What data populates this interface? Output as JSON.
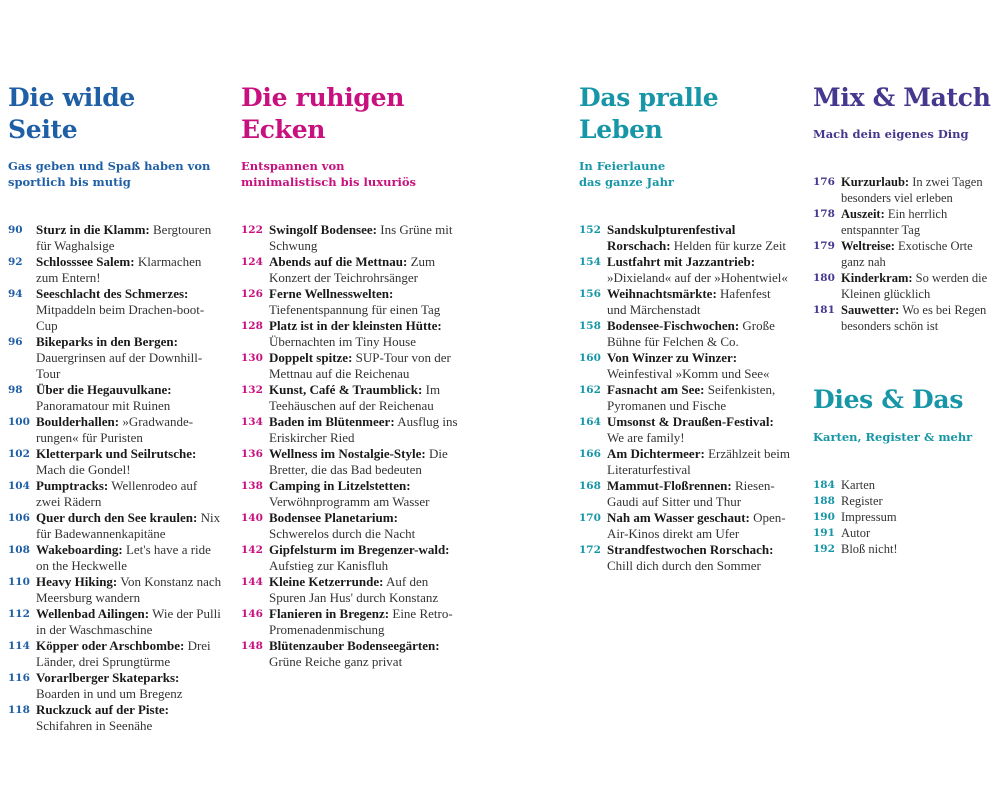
{
  "colors": {
    "wild": "#1f5fa6",
    "quiet": "#c8107e",
    "life": "#1696a6",
    "mix": "#45388f",
    "dies": "#1696a6"
  },
  "sections": {
    "wild": {
      "title_line1": "Die wilde",
      "title_line2": "Seite",
      "subtitle_line1": "Gas geben und Spaß haben von",
      "subtitle_line2": "sportlich bis mutig",
      "entries": [
        {
          "num": "90",
          "label": "Sturz in die Klamm:",
          "text": " Bergtouren für Waghalsige"
        },
        {
          "num": "92",
          "label": "Schlosssee Salem:",
          "text": " Klarmachen zum Entern!"
        },
        {
          "num": "94",
          "label": "Seeschlacht des Schmerzes:",
          "text": " Mitpaddeln beim Drachen-boot-Cup"
        },
        {
          "num": "96",
          "label": "Bikeparks in den Bergen:",
          "text": " Dauergrinsen auf der Downhill-Tour"
        },
        {
          "num": "98",
          "label": "Über die Hegauvulkane:",
          "text": " Panoramatour mit Ruinen"
        },
        {
          "num": "100",
          "label": "Boulderhallen:",
          "text": " »Gradwande-rungen« für Puristen"
        },
        {
          "num": "102",
          "label": "Kletterpark und Seilrutsche:",
          "text": " Mach die Gondel!"
        },
        {
          "num": "104",
          "label": "Pumptracks:",
          "text": " Wellenrodeo auf zwei Rädern"
        },
        {
          "num": "106",
          "label": "Quer durch den See kraulen:",
          "text": " Nix für Badewannenkapitäne"
        },
        {
          "num": "108",
          "label": "Wakeboarding:",
          "text": " Let's have a ride on the Heckwelle"
        },
        {
          "num": "110",
          "label": "Heavy Hiking:",
          "text": " Von Konstanz nach Meersburg wandern"
        },
        {
          "num": "112",
          "label": "Wellenbad Ailingen:",
          "text": " Wie der Pulli in der Waschmaschine"
        },
        {
          "num": "114",
          "label": "Köpper oder Arschbombe:",
          "text": " Drei Länder, drei Sprungtürme"
        },
        {
          "num": "116",
          "label": "Vorarlberger Skateparks:",
          "text": " Boarden in und um Bregenz"
        },
        {
          "num": "118",
          "label": "Ruckzuck auf der Piste:",
          "text": " Schifahren in Seenähe"
        }
      ]
    },
    "quiet": {
      "title_line1": "Die ruhigen",
      "title_line2": "Ecken",
      "subtitle_line1": "Entspannen von",
      "subtitle_line2": "minimalistisch bis luxuriös",
      "entries": [
        {
          "num": "122",
          "label": "Swingolf Bodensee:",
          "text": " Ins Grüne mit Schwung"
        },
        {
          "num": "124",
          "label": "Abends auf die Mettnau:",
          "text": " Zum Konzert der Teichrohrsänger"
        },
        {
          "num": "126",
          "label": "Ferne Wellnesswelten:",
          "text": " Tiefenentspannung für einen Tag"
        },
        {
          "num": "128",
          "label": "Platz ist in der kleinsten Hütte:",
          "text": " Übernachten im Tiny House"
        },
        {
          "num": "130",
          "label": "Doppelt spitze:",
          "text": " SUP-Tour von der Mettnau auf die Reichenau"
        },
        {
          "num": "132",
          "label": "Kunst, Café & Traumblick:",
          "text": " Im Teehäuschen auf der Reichenau"
        },
        {
          "num": "134",
          "label": "Baden im Blütenmeer:",
          "text": " Ausflug ins Eriskircher Ried"
        },
        {
          "num": "136",
          "label": "Wellness im Nostalgie-Style:",
          "text": " Die Bretter, die das Bad bedeuten"
        },
        {
          "num": "138",
          "label": "Camping in Litzelstetten:",
          "text": " Verwöhnprogramm am Wasser"
        },
        {
          "num": "140",
          "label": "Bodensee Planetarium:",
          "text": " Schwerelos durch die Nacht"
        },
        {
          "num": "142",
          "label": "Gipfelsturm im Bregenzer-wald:",
          "text": " Aufstieg zur Kanisfluh"
        },
        {
          "num": "144",
          "label": "Kleine Ketzerrunde:",
          "text": " Auf den Spuren Jan Hus' durch Konstanz"
        },
        {
          "num": "146",
          "label": "Flanieren in Bregenz:",
          "text": " Eine Retro-Promenadenmischung"
        },
        {
          "num": "148",
          "label": "Blütenzauber Bodenseegärten:",
          "text": " Grüne Reiche ganz privat"
        }
      ]
    },
    "life": {
      "title_line1": "Das pralle",
      "title_line2": "Leben",
      "subtitle_line1": "In Feierlaune",
      "subtitle_line2": "das ganze Jahr",
      "entries": [
        {
          "num": "152",
          "label": "Sandskulpturenfestival Rorschach:",
          "text": " Helden für kurze Zeit"
        },
        {
          "num": "154",
          "label": "Lustfahrt mit Jazzantrieb:",
          "text": " »Dixieland« auf der »Hohentwiel«"
        },
        {
          "num": "156",
          "label": "Weihnachtsmärkte:",
          "text": " Hafenfest und Märchenstadt"
        },
        {
          "num": "158",
          "label": "Bodensee-Fischwochen:",
          "text": " Große Bühne für Felchen & Co."
        },
        {
          "num": "160",
          "label": "Von Winzer zu Winzer:",
          "text": " Weinfestival »Komm und See«"
        },
        {
          "num": "162",
          "label": "Fasnacht am See:",
          "text": " Seifenkisten, Pyromanen und Fische"
        },
        {
          "num": "164",
          "label": "Umsonst & Draußen-Festival:",
          "text": " We are family!"
        },
        {
          "num": "166",
          "label": "Am Dichtermeer:",
          "text": " Erzählzeit beim Literaturfestival"
        },
        {
          "num": "168",
          "label": "Mammut-Floßrennen:",
          "text": " Riesen-Gaudi auf Sitter und Thur"
        },
        {
          "num": "170",
          "label": "Nah am Wasser geschaut:",
          "text": " Open-Air-Kinos direkt am Ufer"
        },
        {
          "num": "172",
          "label": "Strandfestwochen Rorschach:",
          "text": " Chill dich durch den Sommer"
        }
      ]
    },
    "mix": {
      "title": "Mix & Match",
      "subtitle": "Mach dein eigenes Ding",
      "entries": [
        {
          "num": "176",
          "label": "Kurzurlaub:",
          "text": " In zwei Tagen besonders viel erleben"
        },
        {
          "num": "178",
          "label": "Auszeit:",
          "text": " Ein herrlich entspannter Tag"
        },
        {
          "num": "179",
          "label": "Weltreise:",
          "text": " Exotische Orte ganz nah"
        },
        {
          "num": "180",
          "label": "Kinderkram:",
          "text": " So werden die Kleinen glücklich"
        },
        {
          "num": "181",
          "label": "Sauwetter:",
          "text": " Wo es bei Regen besonders schön ist"
        }
      ]
    },
    "dies": {
      "title": "Dies & Das",
      "subtitle": "Karten, Register & mehr",
      "entries": [
        {
          "num": "184",
          "label": "",
          "text": "Karten"
        },
        {
          "num": "188",
          "label": "",
          "text": "Register"
        },
        {
          "num": "190",
          "label": "",
          "text": "Impressum"
        },
        {
          "num": "191",
          "label": "",
          "text": "Autor"
        },
        {
          "num": "192",
          "label": "",
          "text": "Bloß nicht!"
        }
      ]
    }
  }
}
